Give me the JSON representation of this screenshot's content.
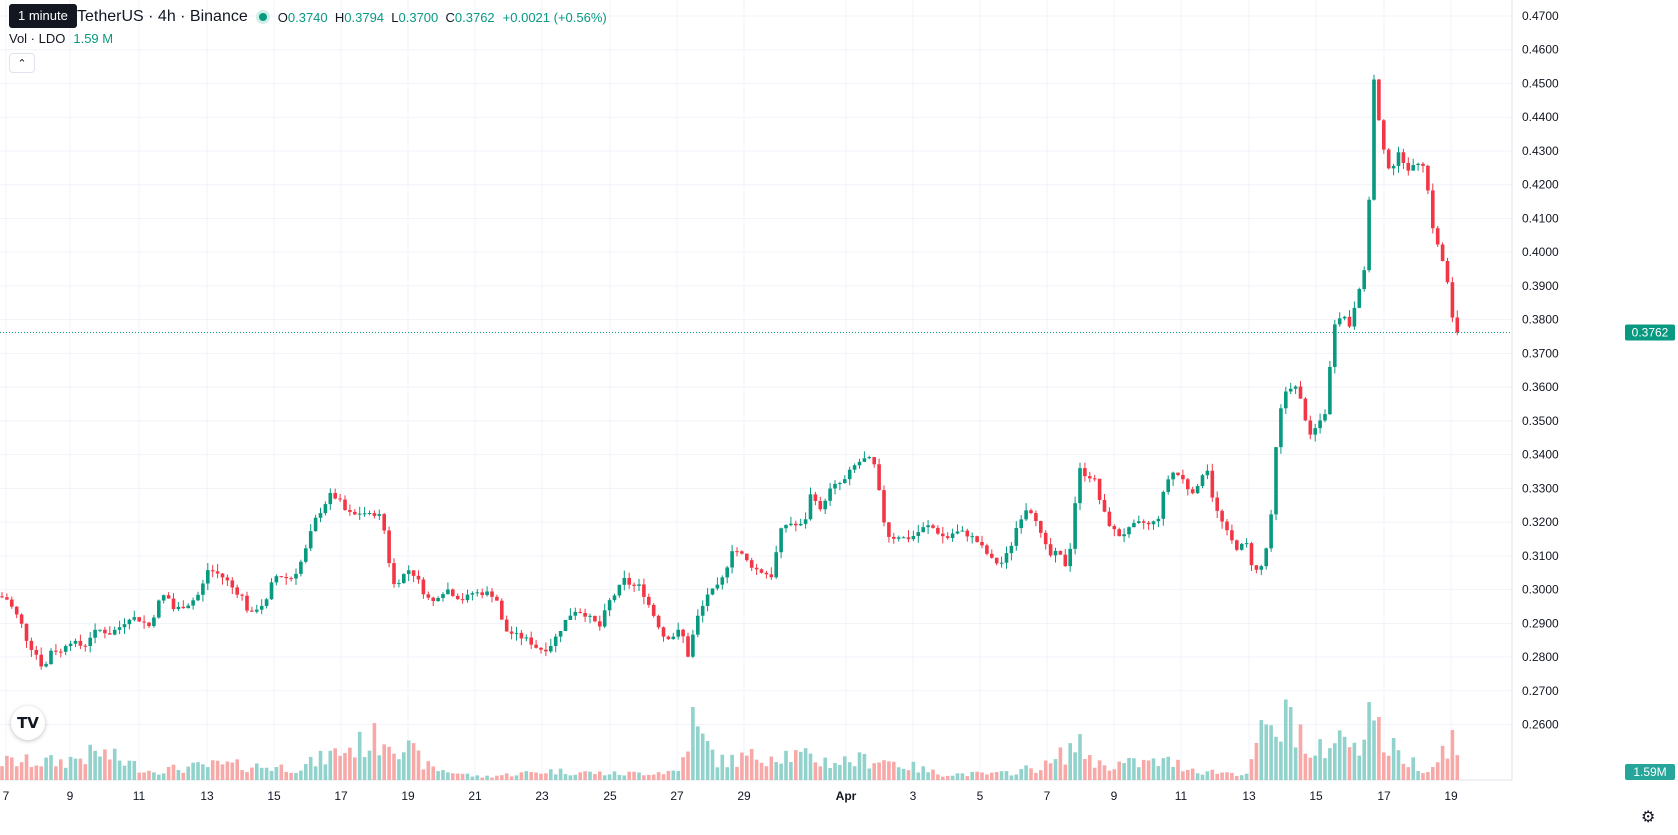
{
  "header": {
    "tooltip": "1 minute",
    "symbol": "TetherUS · 4h · Binance",
    "o_label": "O",
    "o_value": "0.3740",
    "h_label": "H",
    "h_value": "0.3794",
    "l_label": "L",
    "l_value": "0.3700",
    "c_label": "C",
    "c_value": "0.3762",
    "change": "+0.0021 (+0.56%)",
    "vol_label": "Vol · LDO",
    "vol_value": "1.59 M"
  },
  "colors": {
    "up": "#089981",
    "down": "#f23645",
    "up_vol": "#92d2cc",
    "down_vol": "#f7a9a7",
    "grid": "#f0f3fa"
  },
  "icons": {
    "collapse": "chevron-up-icon",
    "logo": "tradingview-logo-icon",
    "settings": "gear-icon"
  },
  "chart_data": {
    "type": "candlestick",
    "y_axis": {
      "range": [
        0.258,
        0.473
      ],
      "ticks": [
        "0.4700",
        "0.4600",
        "0.4500",
        "0.4400",
        "0.4300",
        "0.4200",
        "0.4100",
        "0.4000",
        "0.3900",
        "0.3800",
        "0.3700",
        "0.3600",
        "0.3500",
        "0.3400",
        "0.3300",
        "0.3200",
        "0.3100",
        "0.3000",
        "0.2900",
        "0.2800",
        "0.2700",
        "0.2600"
      ],
      "position": "right"
    },
    "x_axis": {
      "ticks": [
        "7",
        "9",
        "11",
        "13",
        "15",
        "17",
        "19",
        "21",
        "23",
        "25",
        "27",
        "29",
        "Apr",
        "3",
        "5",
        "7",
        "9",
        "11",
        "13",
        "15",
        "17",
        "19"
      ],
      "bold_tick": "Apr"
    },
    "last_price": "0.3762",
    "last_volume": "1.59M",
    "grid": true,
    "close_path": [
      [
        0,
        0.298
      ],
      [
        8,
        0.297
      ],
      [
        14,
        0.2935
      ],
      [
        20,
        0.291
      ],
      [
        28,
        0.284
      ],
      [
        36,
        0.281
      ],
      [
        44,
        0.276
      ],
      [
        52,
        0.283
      ],
      [
        60,
        0.281
      ],
      [
        68,
        0.285
      ],
      [
        76,
        0.284
      ],
      [
        84,
        0.283
      ],
      [
        92,
        0.287
      ],
      [
        100,
        0.288
      ],
      [
        110,
        0.287
      ],
      [
        120,
        0.289
      ],
      [
        130,
        0.292
      ],
      [
        140,
        0.291
      ],
      [
        150,
        0.289
      ],
      [
        158,
        0.296
      ],
      [
        166,
        0.299
      ],
      [
        174,
        0.294
      ],
      [
        182,
        0.295
      ],
      [
        190,
        0.296
      ],
      [
        200,
        0.299
      ],
      [
        208,
        0.306
      ],
      [
        216,
        0.305
      ],
      [
        226,
        0.303
      ],
      [
        234,
        0.3
      ],
      [
        242,
        0.298
      ],
      [
        250,
        0.292
      ],
      [
        258,
        0.295
      ],
      [
        266,
        0.296
      ],
      [
        274,
        0.304
      ],
      [
        282,
        0.304
      ],
      [
        290,
        0.303
      ],
      [
        298,
        0.306
      ],
      [
        306,
        0.312
      ],
      [
        314,
        0.32
      ],
      [
        322,
        0.324
      ],
      [
        330,
        0.328
      ],
      [
        338,
        0.327
      ],
      [
        346,
        0.323
      ],
      [
        354,
        0.322
      ],
      [
        362,
        0.323
      ],
      [
        370,
        0.322
      ],
      [
        378,
        0.323
      ],
      [
        386,
        0.316
      ],
      [
        392,
        0.301
      ],
      [
        400,
        0.303
      ],
      [
        408,
        0.306
      ],
      [
        416,
        0.304
      ],
      [
        424,
        0.299
      ],
      [
        432,
        0.296
      ],
      [
        440,
        0.299
      ],
      [
        448,
        0.3
      ],
      [
        456,
        0.298
      ],
      [
        464,
        0.297
      ],
      [
        472,
        0.299
      ],
      [
        480,
        0.299
      ],
      [
        488,
        0.299
      ],
      [
        496,
        0.298
      ],
      [
        504,
        0.288
      ],
      [
        512,
        0.287
      ],
      [
        520,
        0.286
      ],
      [
        528,
        0.285
      ],
      [
        536,
        0.283
      ],
      [
        544,
        0.282
      ],
      [
        552,
        0.284
      ],
      [
        560,
        0.288
      ],
      [
        568,
        0.292
      ],
      [
        576,
        0.294
      ],
      [
        584,
        0.293
      ],
      [
        592,
        0.291
      ],
      [
        600,
        0.289
      ],
      [
        608,
        0.296
      ],
      [
        616,
        0.299
      ],
      [
        624,
        0.303
      ],
      [
        632,
        0.301
      ],
      [
        640,
        0.301
      ],
      [
        648,
        0.296
      ],
      [
        656,
        0.291
      ],
      [
        664,
        0.286
      ],
      [
        672,
        0.286
      ],
      [
        680,
        0.288
      ],
      [
        686,
        0.284
      ],
      [
        690,
        0.277
      ],
      [
        694,
        0.29
      ],
      [
        700,
        0.293
      ],
      [
        708,
        0.299
      ],
      [
        716,
        0.3
      ],
      [
        724,
        0.304
      ],
      [
        732,
        0.312
      ],
      [
        740,
        0.311
      ],
      [
        748,
        0.308
      ],
      [
        756,
        0.306
      ],
      [
        764,
        0.305
      ],
      [
        772,
        0.304
      ],
      [
        780,
        0.317
      ],
      [
        788,
        0.32
      ],
      [
        796,
        0.319
      ],
      [
        804,
        0.319
      ],
      [
        812,
        0.33
      ],
      [
        820,
        0.323
      ],
      [
        828,
        0.329
      ],
      [
        836,
        0.331
      ],
      [
        844,
        0.332
      ],
      [
        852,
        0.336
      ],
      [
        860,
        0.338
      ],
      [
        868,
        0.339
      ],
      [
        876,
        0.336
      ],
      [
        882,
        0.322
      ],
      [
        890,
        0.315
      ],
      [
        898,
        0.316
      ],
      [
        906,
        0.315
      ],
      [
        914,
        0.316
      ],
      [
        922,
        0.318
      ],
      [
        930,
        0.319
      ],
      [
        938,
        0.317
      ],
      [
        946,
        0.315
      ],
      [
        954,
        0.317
      ],
      [
        962,
        0.317
      ],
      [
        970,
        0.316
      ],
      [
        978,
        0.314
      ],
      [
        986,
        0.311
      ],
      [
        994,
        0.308
      ],
      [
        1002,
        0.308
      ],
      [
        1010,
        0.312
      ],
      [
        1018,
        0.32
      ],
      [
        1026,
        0.324
      ],
      [
        1034,
        0.323
      ],
      [
        1042,
        0.315
      ],
      [
        1050,
        0.31
      ],
      [
        1058,
        0.311
      ],
      [
        1066,
        0.307
      ],
      [
        1072,
        0.315
      ],
      [
        1078,
        0.336
      ],
      [
        1086,
        0.334
      ],
      [
        1094,
        0.333
      ],
      [
        1102,
        0.324
      ],
      [
        1110,
        0.319
      ],
      [
        1118,
        0.316
      ],
      [
        1126,
        0.317
      ],
      [
        1134,
        0.319
      ],
      [
        1142,
        0.32
      ],
      [
        1150,
        0.319
      ],
      [
        1158,
        0.321
      ],
      [
        1166,
        0.332
      ],
      [
        1174,
        0.335
      ],
      [
        1182,
        0.333
      ],
      [
        1190,
        0.329
      ],
      [
        1198,
        0.33
      ],
      [
        1206,
        0.338
      ],
      [
        1214,
        0.325
      ],
      [
        1222,
        0.32
      ],
      [
        1230,
        0.315
      ],
      [
        1238,
        0.312
      ],
      [
        1246,
        0.314
      ],
      [
        1254,
        0.305
      ],
      [
        1262,
        0.307
      ],
      [
        1270,
        0.317
      ],
      [
        1278,
        0.35
      ],
      [
        1286,
        0.359
      ],
      [
        1294,
        0.361
      ],
      [
        1302,
        0.355
      ],
      [
        1310,
        0.345
      ],
      [
        1318,
        0.349
      ],
      [
        1326,
        0.353
      ],
      [
        1334,
        0.379
      ],
      [
        1342,
        0.382
      ],
      [
        1350,
        0.378
      ],
      [
        1358,
        0.389
      ],
      [
        1364,
        0.393
      ],
      [
        1370,
        0.42
      ],
      [
        1374,
        0.451
      ],
      [
        1380,
        0.436
      ],
      [
        1386,
        0.426
      ],
      [
        1392,
        0.425
      ],
      [
        1398,
        0.429
      ],
      [
        1404,
        0.427
      ],
      [
        1410,
        0.424
      ],
      [
        1416,
        0.426
      ],
      [
        1422,
        0.428
      ],
      [
        1428,
        0.418
      ],
      [
        1434,
        0.405
      ],
      [
        1440,
        0.4
      ],
      [
        1446,
        0.394
      ],
      [
        1452,
        0.381
      ],
      [
        1456,
        0.372
      ],
      [
        1460,
        0.3762
      ]
    ],
    "volume_path": [
      [
        0,
        0.3
      ],
      [
        60,
        0.3
      ],
      [
        100,
        0.45
      ],
      [
        150,
        0.15
      ],
      [
        220,
        0.25
      ],
      [
        300,
        0.2
      ],
      [
        336,
        0.45
      ],
      [
        390,
        0.75
      ],
      [
        430,
        0.2
      ],
      [
        480,
        0.05
      ],
      [
        550,
        0.15
      ],
      [
        620,
        0.1
      ],
      [
        680,
        0.15
      ],
      [
        692,
        1.0
      ],
      [
        700,
        0.7
      ],
      [
        720,
        0.3
      ],
      [
        780,
        0.45
      ],
      [
        830,
        0.3
      ],
      [
        880,
        0.35
      ],
      [
        940,
        0.1
      ],
      [
        1000,
        0.1
      ],
      [
        1050,
        0.25
      ],
      [
        1076,
        0.6
      ],
      [
        1100,
        0.25
      ],
      [
        1170,
        0.3
      ],
      [
        1200,
        0.15
      ],
      [
        1250,
        0.1
      ],
      [
        1256,
        0.7
      ],
      [
        1280,
        0.8
      ],
      [
        1290,
        1.1
      ],
      [
        1300,
        0.85
      ],
      [
        1310,
        0.3
      ],
      [
        1330,
        0.65
      ],
      [
        1360,
        0.7
      ],
      [
        1372,
        1.3
      ],
      [
        1380,
        0.7
      ],
      [
        1400,
        0.4
      ],
      [
        1430,
        0.15
      ],
      [
        1452,
        0.75
      ],
      [
        1460,
        0.15
      ]
    ]
  }
}
